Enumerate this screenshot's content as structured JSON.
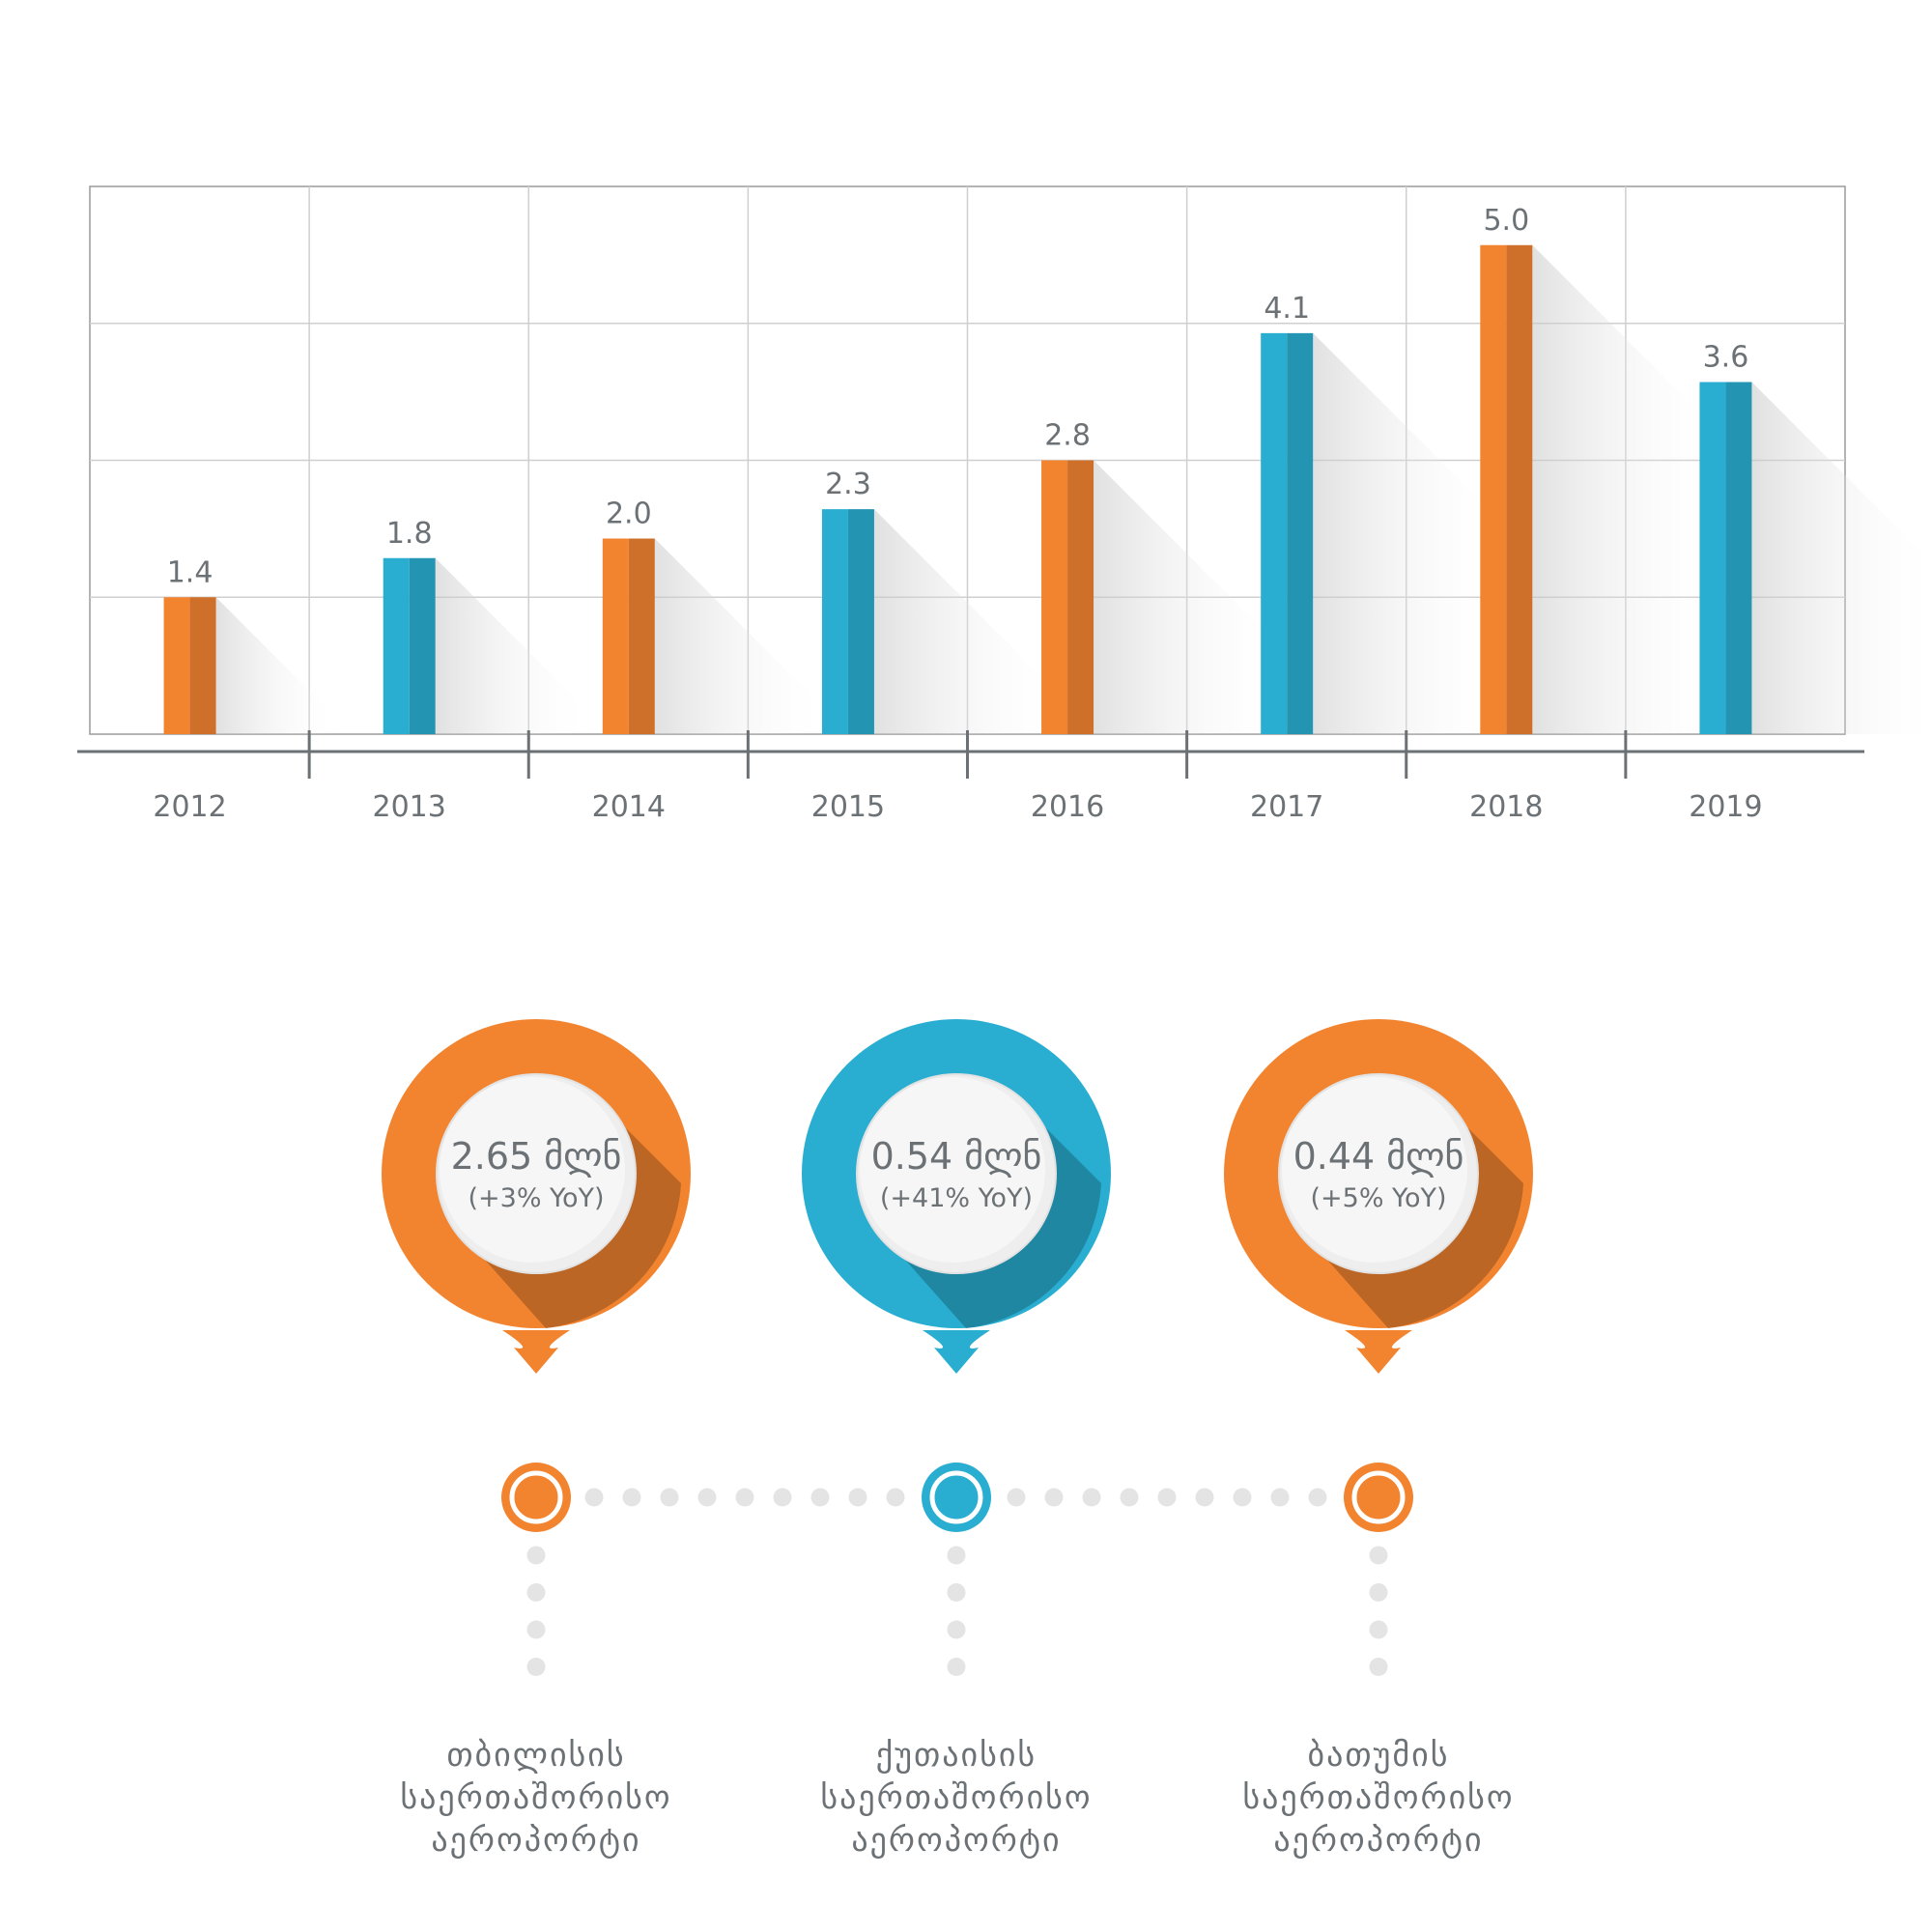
{
  "colors": {
    "orange": "#f28430",
    "blue": "#29aed1",
    "text": "#6b7175"
  },
  "chart_data": {
    "type": "bar",
    "categories": [
      "2012",
      "2013",
      "2014",
      "2015",
      "2016",
      "2017",
      "2018",
      "2019"
    ],
    "values": [
      1.4,
      1.8,
      2.0,
      2.3,
      2.8,
      4.1,
      5.0,
      3.6
    ],
    "data_labels": [
      "1.4",
      "1.8",
      "2.0",
      "2.3",
      "2.8",
      "4.1",
      "5.0",
      "3.6"
    ],
    "bar_colors": [
      "orange",
      "blue",
      "orange",
      "blue",
      "orange",
      "blue",
      "orange",
      "blue"
    ],
    "title": "",
    "xlabel": "",
    "ylabel": "",
    "ylim": [
      0,
      5.6
    ],
    "grid": true,
    "legend": "none"
  },
  "airports": [
    {
      "value": "2.65 მლნ",
      "change": "(+3% YoY)",
      "color": "orange",
      "name_lines": [
        "თბილისის",
        "საერთაშორისო",
        "აეროპორტი"
      ]
    },
    {
      "value": "0.54 მლნ",
      "change": "(+41% YoY)",
      "color": "blue",
      "name_lines": [
        "ქუთაისის",
        "საერთაშორისო",
        "აეროპორტი"
      ]
    },
    {
      "value": "0.44 მლნ",
      "change": "(+5% YoY)",
      "color": "orange",
      "name_lines": [
        "ბათუმის",
        "საერთაშორისო",
        "აეროპორტი"
      ]
    }
  ]
}
